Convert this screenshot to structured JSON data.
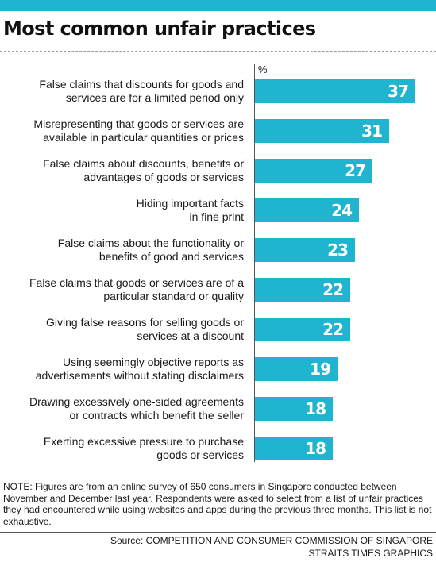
{
  "title": "Most common unfair practices",
  "note": "NOTE: Figures are from an online survey of 650 consumers in Singapore conducted between November and December last year. Respondents were asked to select from a list of unfair practices they had encountered while using websites and apps during the previous three months. This list is not exhaustive.",
  "source": "Source: COMPETITION AND CONSUMER COMMISSION OF SINGAPORE",
  "credit": "STRAITS TIMES GRAPHICS",
  "colors": {
    "bar": "#1fb4cf",
    "top_bar": "#1fb4cf",
    "value_text": "#ffffff"
  },
  "chart_data": {
    "type": "bar",
    "orientation": "horizontal",
    "unit": "%",
    "xlim": [
      0,
      41
    ],
    "grid": false,
    "categories": [
      [
        "False claims that discounts for goods and",
        "services are for a limited period only"
      ],
      [
        "Misrepresenting that goods or services are",
        "available in particular quantities or prices"
      ],
      [
        "False claims about discounts, benefits or",
        "advantages of goods or services"
      ],
      [
        "Hiding important facts",
        "in fine print"
      ],
      [
        "False claims about the functionality or",
        "benefits of good and services"
      ],
      [
        "False claims that goods or services are of a",
        "particular standard or quality"
      ],
      [
        "Giving false reasons for selling goods or",
        "services at a discount"
      ],
      [
        "Using seemingly objective reports as",
        "advertisements without stating disclaimers"
      ],
      [
        "Drawing excessively one-sided agreements",
        "or contracts which benefit the seller"
      ],
      [
        "Exerting excessive pressure to purchase",
        "goods or services"
      ]
    ],
    "values": [
      37,
      31,
      27,
      24,
      23,
      22,
      22,
      19,
      18,
      18
    ]
  }
}
